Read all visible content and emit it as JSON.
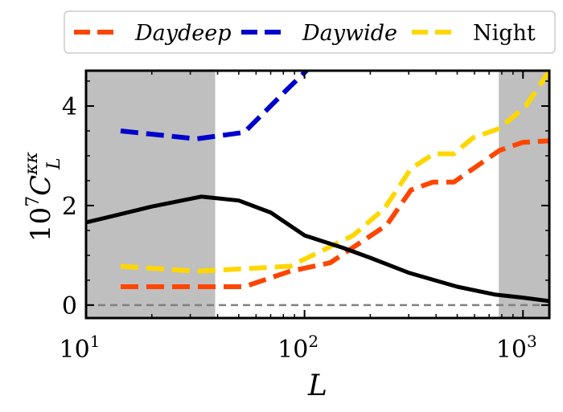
{
  "chart_data": {
    "type": "line",
    "xlabel": "L",
    "ylabel": {
      "base": "10",
      "exp": "7",
      "sym": "C",
      "sub": "L",
      "sup": "κκ"
    },
    "xscale": "log",
    "xlim": [
      10,
      1320
    ],
    "ylim": [
      -0.26,
      4.71
    ],
    "xticks": [
      {
        "value": 10,
        "base": "10",
        "exp": "1"
      },
      {
        "value": 100,
        "base": "10",
        "exp": "2"
      },
      {
        "value": 1000,
        "base": "10",
        "exp": "3"
      }
    ],
    "yticks": [
      0,
      2,
      4
    ],
    "grid": false,
    "legend_placement": "top (outside)",
    "shaded_regions": [
      [
        10,
        39
      ],
      [
        775,
        1320
      ]
    ],
    "zero_line": {
      "y": 0,
      "color": "#808080",
      "style": "dashed"
    },
    "series": [
      {
        "name": "Daydeep",
        "italic": true,
        "color": "#ff4500",
        "style": "dashed",
        "x": [
          14.4,
          32,
          53,
          86,
          131,
          238,
          307,
          386,
          482,
          782,
          1000,
          1310
        ],
        "y": [
          0.37,
          0.37,
          0.37,
          0.68,
          0.85,
          1.61,
          2.31,
          2.47,
          2.47,
          3.11,
          3.27,
          3.3
        ]
      },
      {
        "name": "Daywide",
        "italic": true,
        "color": "#0000cd",
        "style": "dashed",
        "x": [
          14.4,
          32,
          53,
          84,
          110
        ],
        "y": [
          3.5,
          3.34,
          3.47,
          4.35,
          4.85
        ]
      },
      {
        "name": "Night",
        "italic": false,
        "color": "#ffd700",
        "style": "dashed",
        "x": [
          14.4,
          32,
          53,
          86,
          167,
          232,
          307,
          390,
          482,
          590,
          782,
          1030,
          1310
        ],
        "y": [
          0.78,
          0.68,
          0.73,
          0.78,
          1.4,
          1.94,
          2.74,
          3.04,
          3.04,
          3.36,
          3.55,
          4.0,
          4.68
        ]
      },
      {
        "color": "#000000",
        "style": "solid",
        "x": [
          10,
          20,
          33.7,
          50,
          70,
          100,
          150,
          200,
          300,
          500,
          750,
          1000,
          1320
        ],
        "y": [
          1.66,
          1.98,
          2.18,
          2.1,
          1.86,
          1.4,
          1.15,
          0.95,
          0.65,
          0.37,
          0.21,
          0.15,
          0.08
        ]
      }
    ]
  }
}
